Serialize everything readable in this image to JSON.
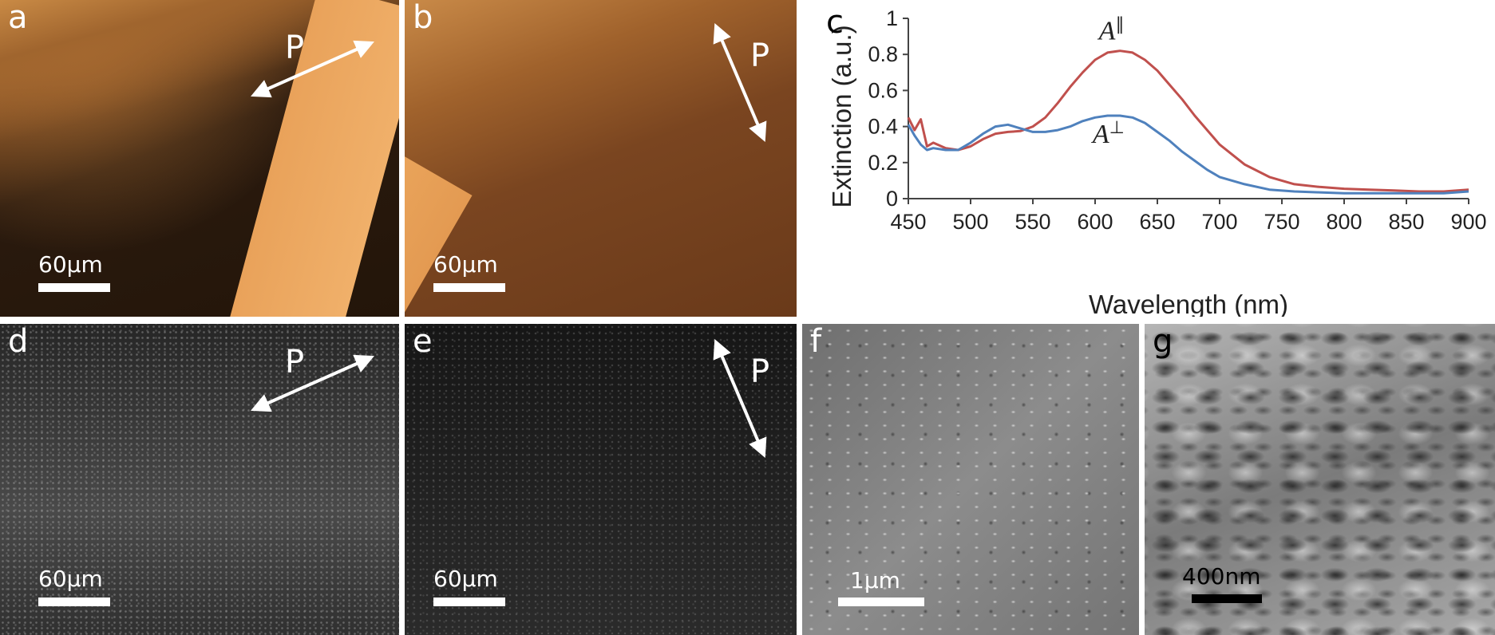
{
  "panels": {
    "a": {
      "label": "a",
      "polarization": "P",
      "scalebar": "60μm"
    },
    "b": {
      "label": "b",
      "polarization": "P",
      "scalebar": "60μm"
    },
    "c": {
      "label": "c"
    },
    "d": {
      "label": "d",
      "polarization": "P",
      "scalebar": "60μm"
    },
    "e": {
      "label": "e",
      "polarization": "P",
      "scalebar": "60μm"
    },
    "f": {
      "label": "f",
      "scalebar": "1μm"
    },
    "g": {
      "label": "g",
      "scalebar": "400nm"
    }
  },
  "chart_data": {
    "type": "line",
    "title": "",
    "xlabel": "Wavelength (nm)",
    "ylabel": "Extinction (a.u.)",
    "xlim": [
      450,
      900
    ],
    "ylim": [
      0,
      1
    ],
    "xticks": [
      450,
      500,
      550,
      600,
      650,
      700,
      750,
      800,
      850,
      900
    ],
    "yticks": [
      0,
      0.2,
      0.4,
      0.6,
      0.8,
      1
    ],
    "ytick_labels": [
      "0",
      "0.2",
      "0.4",
      "0.6",
      "0.8",
      "1"
    ],
    "grid": false,
    "colors": {
      "parallel": "#c0504d",
      "perpendicular": "#4f81bd"
    },
    "series": [
      {
        "name": "A∥",
        "label_main": "A",
        "label_sup": "∥",
        "x": [
          450,
          455,
          460,
          465,
          470,
          480,
          490,
          500,
          510,
          520,
          530,
          540,
          550,
          560,
          570,
          580,
          590,
          600,
          610,
          620,
          630,
          640,
          650,
          660,
          670,
          680,
          690,
          700,
          720,
          740,
          760,
          780,
          800,
          820,
          840,
          860,
          880,
          900
        ],
        "y": [
          0.45,
          0.38,
          0.44,
          0.29,
          0.31,
          0.28,
          0.27,
          0.29,
          0.33,
          0.36,
          0.37,
          0.375,
          0.4,
          0.45,
          0.53,
          0.62,
          0.7,
          0.77,
          0.81,
          0.82,
          0.81,
          0.77,
          0.71,
          0.63,
          0.55,
          0.46,
          0.38,
          0.3,
          0.19,
          0.12,
          0.08,
          0.065,
          0.055,
          0.05,
          0.045,
          0.04,
          0.04,
          0.05
        ]
      },
      {
        "name": "A⊥",
        "label_main": "A",
        "label_sup": "⊥",
        "x": [
          450,
          455,
          460,
          465,
          470,
          480,
          490,
          500,
          510,
          520,
          530,
          540,
          550,
          560,
          570,
          580,
          590,
          600,
          610,
          620,
          630,
          640,
          650,
          660,
          670,
          680,
          690,
          700,
          720,
          740,
          760,
          780,
          800,
          820,
          840,
          860,
          880,
          900
        ],
        "y": [
          0.41,
          0.35,
          0.3,
          0.27,
          0.28,
          0.27,
          0.27,
          0.31,
          0.36,
          0.4,
          0.41,
          0.39,
          0.37,
          0.37,
          0.38,
          0.4,
          0.43,
          0.45,
          0.46,
          0.46,
          0.45,
          0.42,
          0.37,
          0.32,
          0.26,
          0.21,
          0.16,
          0.12,
          0.08,
          0.05,
          0.04,
          0.035,
          0.03,
          0.03,
          0.03,
          0.03,
          0.03,
          0.04
        ]
      }
    ]
  }
}
